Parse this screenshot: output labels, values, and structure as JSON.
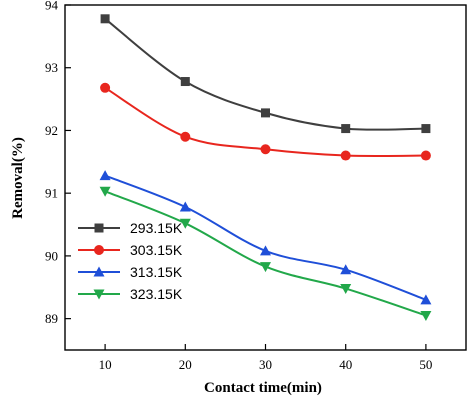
{
  "chart_data": {
    "type": "line",
    "title": "",
    "xlabel": "Contact time(min)",
    "ylabel": "Removal(%)",
    "xlim": [
      5,
      55
    ],
    "ylim": [
      88.5,
      94
    ],
    "xticks": [
      10,
      20,
      30,
      40,
      50
    ],
    "yticks": [
      89,
      90,
      91,
      92,
      93,
      94
    ],
    "legend_position": "bottom-left",
    "x": [
      10,
      20,
      30,
      40,
      50
    ],
    "series": [
      {
        "name": "293.15K",
        "marker": "square",
        "color": "#3f3f3f",
        "values": [
          93.78,
          92.78,
          92.28,
          92.03,
          92.03
        ]
      },
      {
        "name": "303.15K",
        "marker": "circle",
        "color": "#e8261e",
        "values": [
          92.68,
          91.9,
          91.7,
          91.6,
          91.6
        ]
      },
      {
        "name": "313.15K",
        "marker": "triangle-up",
        "color": "#1f4fd8",
        "values": [
          91.28,
          90.78,
          90.08,
          89.78,
          89.3
        ]
      },
      {
        "name": "323.15K",
        "marker": "triangle-down",
        "color": "#22a84a",
        "values": [
          91.03,
          90.52,
          89.83,
          89.48,
          89.05
        ]
      }
    ]
  }
}
